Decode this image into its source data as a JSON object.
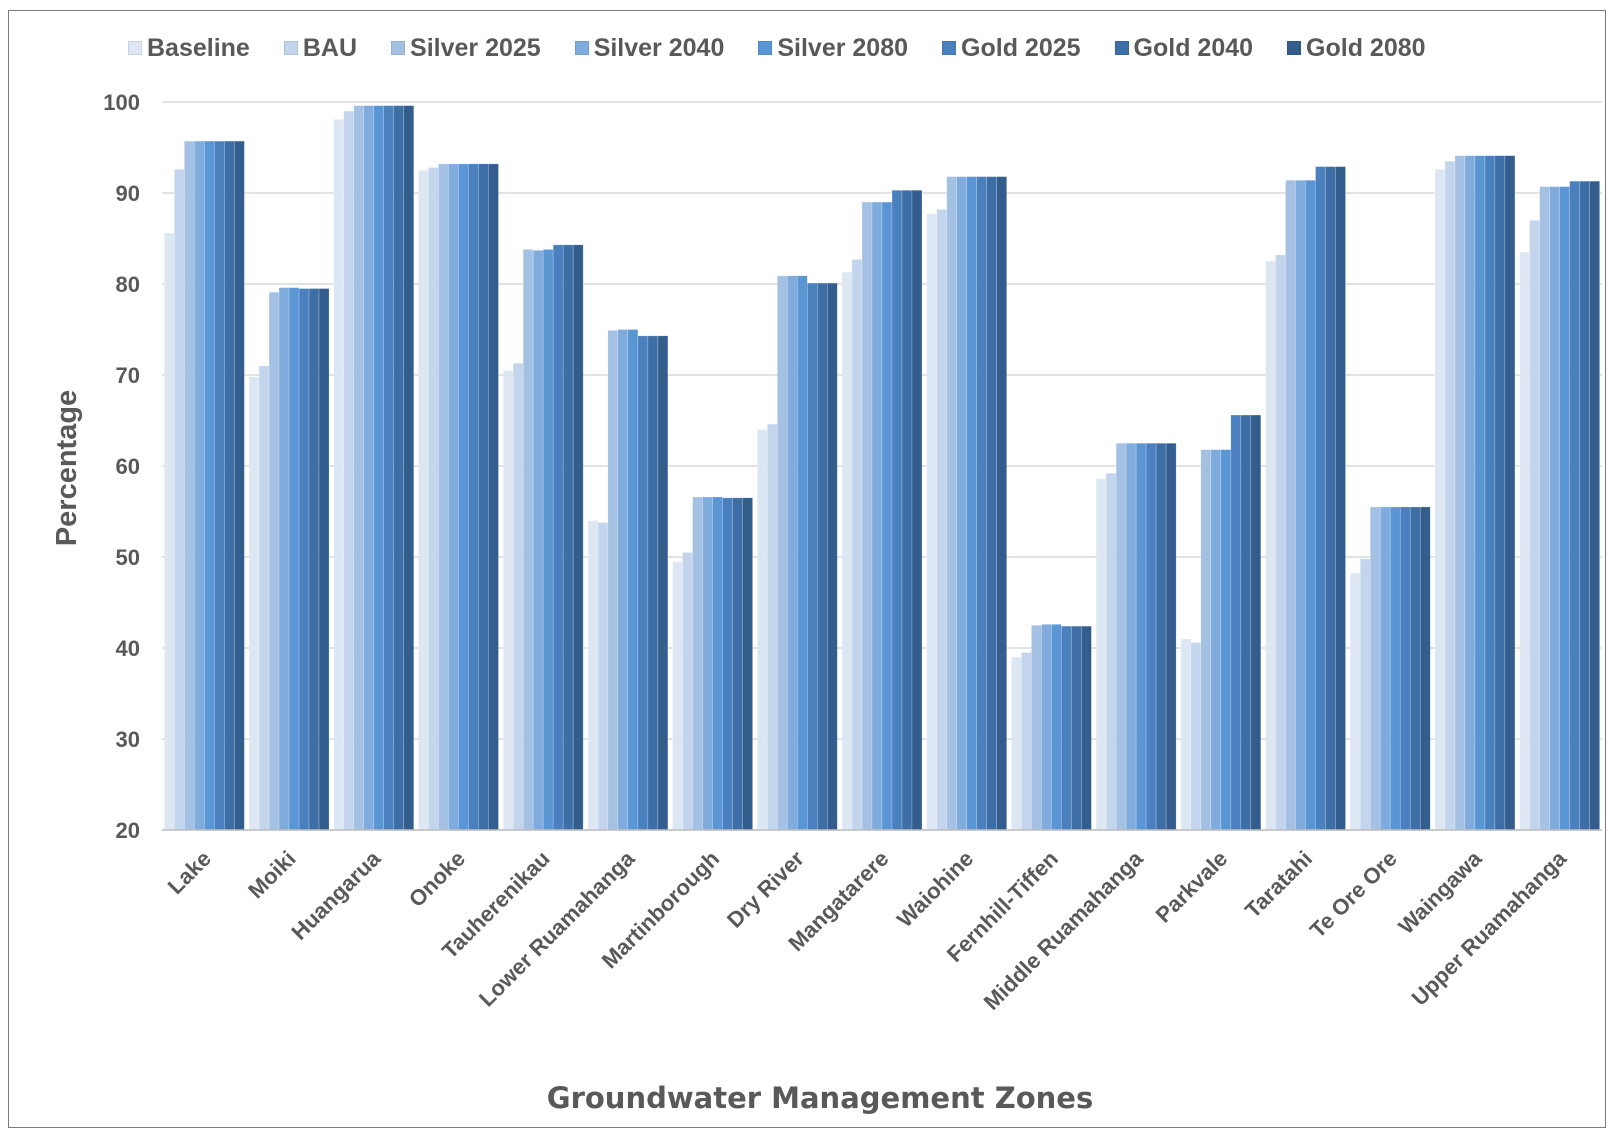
{
  "chart_data": {
    "type": "bar",
    "title": "",
    "xlabel": "Groundwater Management Zones",
    "ylabel": "Percentage",
    "ylim": [
      20,
      100
    ],
    "yticks": [
      20,
      30,
      40,
      50,
      60,
      70,
      80,
      90,
      100
    ],
    "grid": true,
    "legend_position": "top",
    "categories": [
      "Lake",
      "Moiki",
      "Huangarua",
      "Onoke",
      "Tauherenikau",
      "Lower Ruamahanga",
      "Martinborough",
      "Dry River",
      "Mangatarere",
      "Waiohine",
      "Fernhill-Tiffen",
      "Middle Ruamahanga",
      "Parkvale",
      "Taratahi",
      "Te Ore Ore",
      "Waingawa",
      "Upper Ruamahanga"
    ],
    "series": [
      {
        "name": "Baseline",
        "color": "#dde7f4",
        "values": [
          85.6,
          69.8,
          98.1,
          92.5,
          70.5,
          54.0,
          49.5,
          64.0,
          81.3,
          87.7,
          39.0,
          58.6,
          41.0,
          82.5,
          48.2,
          92.6,
          83.5
        ]
      },
      {
        "name": "BAU",
        "color": "#c3d5ec",
        "values": [
          92.6,
          71.0,
          99.0,
          92.8,
          71.3,
          53.8,
          50.5,
          64.6,
          82.7,
          88.2,
          39.5,
          59.2,
          40.6,
          83.2,
          49.8,
          93.5,
          87.0
        ]
      },
      {
        "name": "Silver 2025",
        "color": "#a4c1e4",
        "values": [
          95.7,
          79.1,
          99.6,
          93.2,
          83.8,
          74.9,
          56.6,
          80.9,
          89.0,
          91.8,
          42.5,
          62.5,
          61.8,
          91.4,
          55.5,
          94.1,
          90.7
        ]
      },
      {
        "name": "Silver 2040",
        "color": "#7fabdd",
        "values": [
          95.7,
          79.6,
          99.6,
          93.2,
          83.7,
          75.0,
          56.6,
          80.9,
          89.0,
          91.8,
          42.6,
          62.5,
          61.8,
          91.4,
          55.5,
          94.1,
          90.7
        ]
      },
      {
        "name": "Silver 2080",
        "color": "#5a95d4",
        "values": [
          95.7,
          79.6,
          99.6,
          93.2,
          83.8,
          75.0,
          56.6,
          80.9,
          89.0,
          91.8,
          42.6,
          62.5,
          61.8,
          91.4,
          55.5,
          94.1,
          90.7
        ]
      },
      {
        "name": "Gold 2025",
        "color": "#4a80bd",
        "values": [
          95.7,
          79.5,
          99.6,
          93.2,
          84.3,
          74.3,
          56.5,
          80.1,
          90.3,
          91.8,
          42.4,
          62.5,
          65.6,
          92.9,
          55.5,
          94.1,
          91.3
        ]
      },
      {
        "name": "Gold 2040",
        "color": "#3d6ea6",
        "values": [
          95.7,
          79.5,
          99.6,
          93.2,
          84.3,
          74.3,
          56.5,
          80.1,
          90.3,
          91.8,
          42.4,
          62.5,
          65.6,
          92.9,
          55.5,
          94.1,
          91.3
        ]
      },
      {
        "name": "Gold 2080",
        "color": "#335d8c",
        "values": [
          95.7,
          79.5,
          99.6,
          93.2,
          84.3,
          74.3,
          56.5,
          80.1,
          90.3,
          91.8,
          42.4,
          62.5,
          65.6,
          92.9,
          55.5,
          94.1,
          91.3
        ]
      }
    ]
  }
}
